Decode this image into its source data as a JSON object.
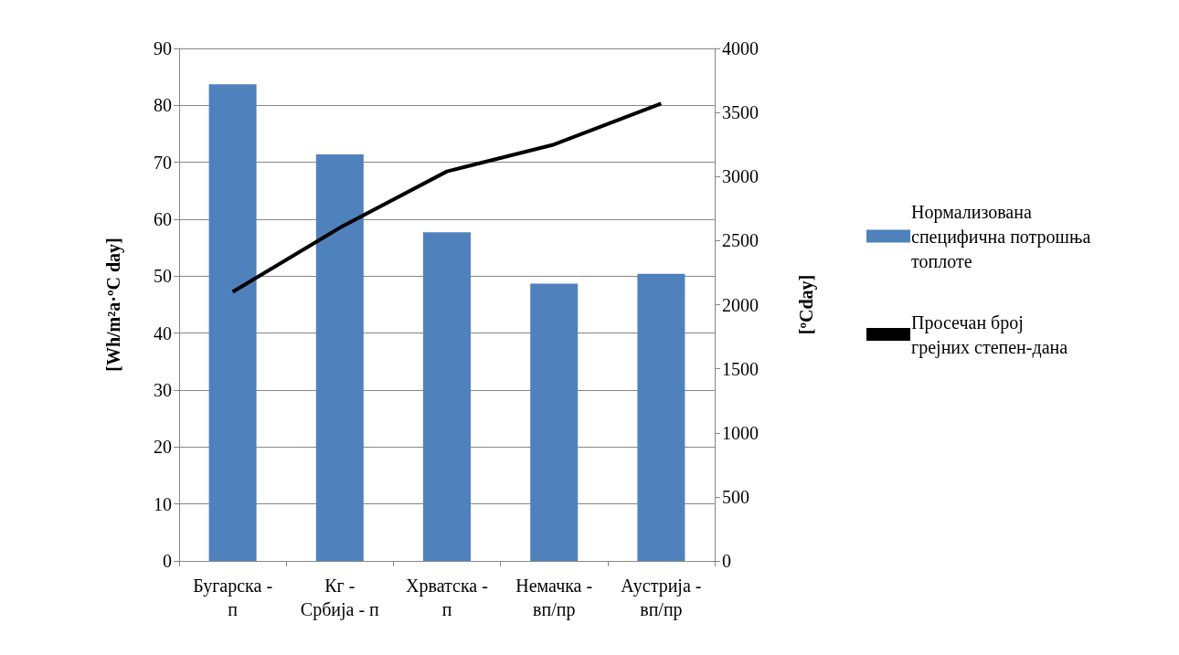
{
  "chart_data": {
    "type": "bar",
    "categories": [
      "Бугарска - п",
      "Кг - Србија - п",
      "Хрватска - п",
      "Немачка - вп/пр",
      "Аустрија - вп/пр"
    ],
    "series": [
      {
        "name": "Нормализована специфична потрошња топлоте",
        "color": "#4f81bd",
        "values": [
          83.7,
          71.4,
          57.7,
          48.7,
          50.4
        ]
      },
      {
        "name": "Просечан број грејних степен-дана",
        "type": "line",
        "axis": "y2",
        "color": "#000000",
        "values": [
          2100,
          2600,
          3040,
          3250,
          3570
        ]
      }
    ],
    "ylabel": "[Wh/m²a·ºC day]",
    "y2label": "[ºCday]",
    "ylim": [
      0,
      90
    ],
    "yticks": [
      0,
      10,
      20,
      30,
      40,
      50,
      60,
      70,
      80,
      90
    ],
    "y2lim": [
      0,
      4000
    ],
    "y2ticks": [
      0,
      500,
      1000,
      1500,
      2000,
      2500,
      3000,
      3500,
      4000
    ],
    "grid": "y",
    "legend": "right",
    "marker": "none"
  }
}
